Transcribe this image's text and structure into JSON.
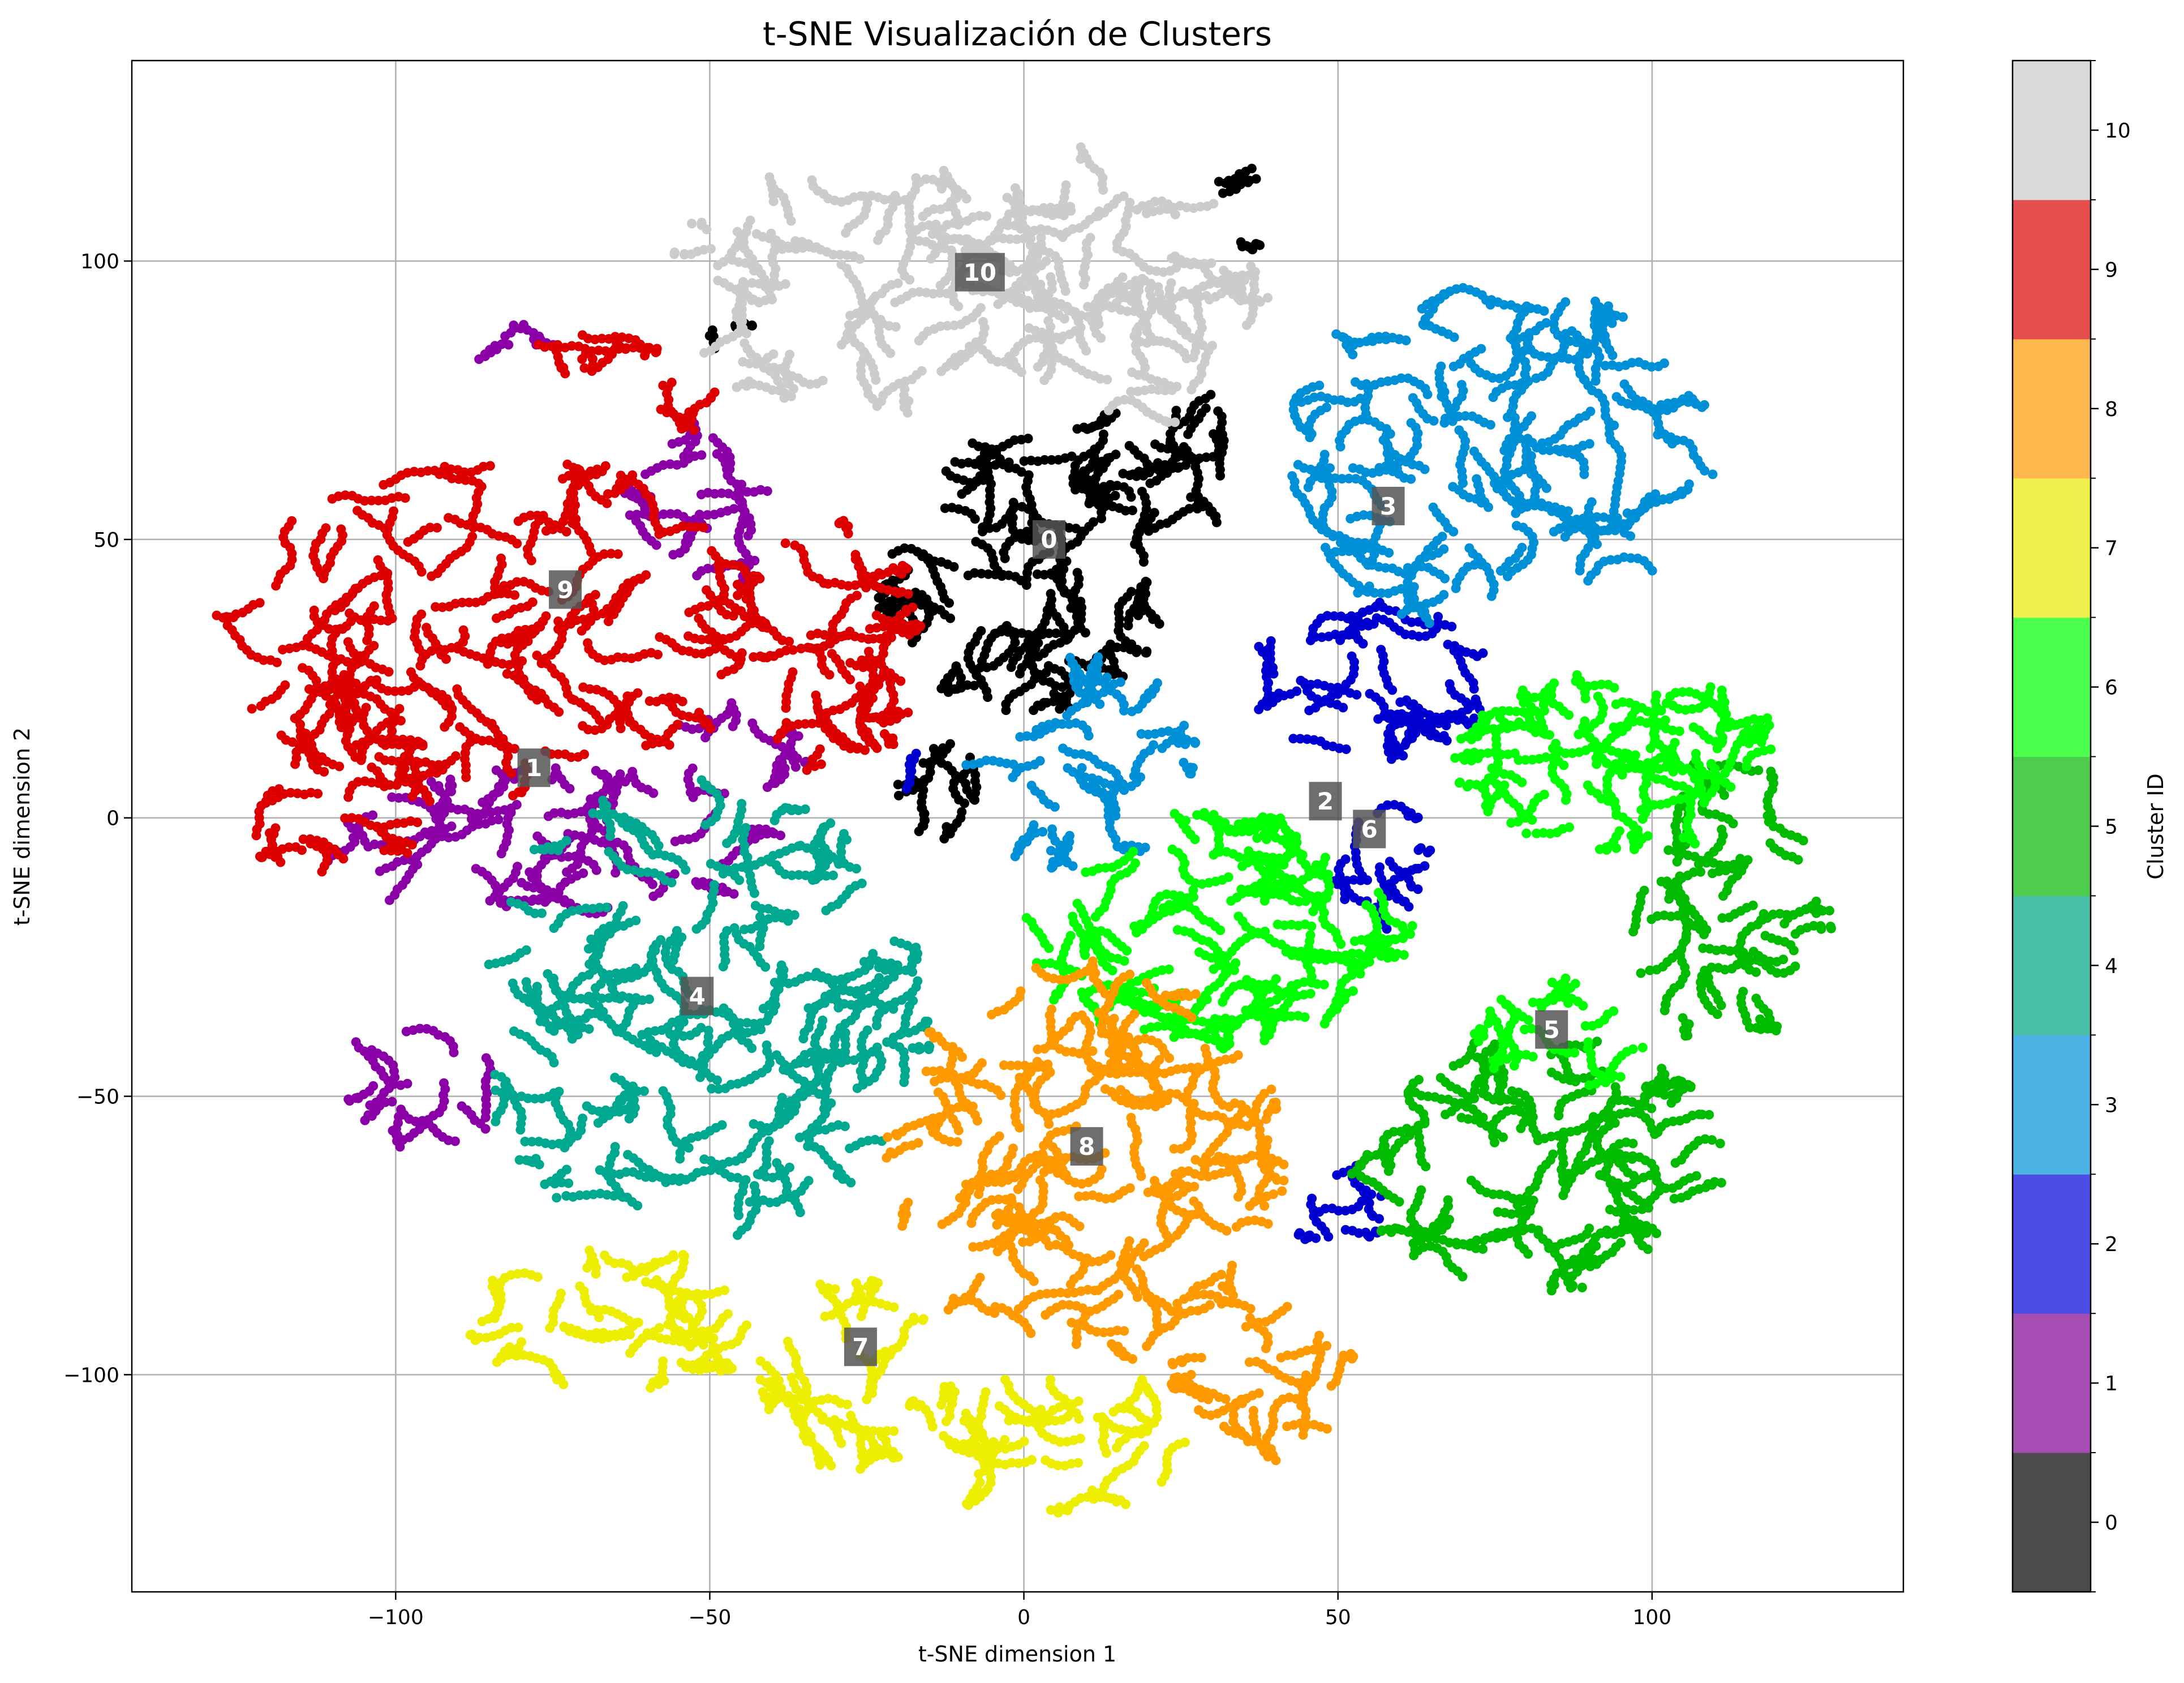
{
  "chart_data": {
    "type": "scatter",
    "title": "t-SNE Visualización de Clusters",
    "xlabel": "t-SNE dimension 1",
    "ylabel": "t-SNE dimension 2",
    "xlim": [
      -142,
      140
    ],
    "ylim": [
      -139,
      136
    ],
    "xticks": [
      -100,
      -50,
      0,
      50,
      100
    ],
    "yticks": [
      -100,
      -50,
      0,
      50,
      100
    ],
    "xtick_labels": [
      "−100",
      "−50",
      "0",
      "50",
      "100"
    ],
    "ytick_labels": [
      "−100",
      "−50",
      "0",
      "50",
      "100"
    ],
    "grid": true,
    "colorbar": {
      "label": "Cluster ID",
      "ticks": [
        "0",
        "1",
        "2",
        "3",
        "4",
        "5",
        "6",
        "7",
        "8",
        "9",
        "10"
      ],
      "colors": [
        "#4b4b4b",
        "#a64db3",
        "#4d4de6",
        "#4db3e6",
        "#47bfa8",
        "#4dcc4d",
        "#4dff4d",
        "#f0f04d",
        "#ffb84d",
        "#e64d4d",
        "#d9d9d9"
      ]
    },
    "clusters": [
      {
        "id": 0,
        "label": "0",
        "color": "#000000",
        "label_pos": [
          4,
          50
        ],
        "regions": [
          {
            "cx": 0,
            "cy": 45,
            "rx": 22,
            "ry": 25,
            "n": 520
          },
          {
            "cx": 22,
            "cy": 65,
            "rx": 13,
            "ry": 14,
            "n": 170
          },
          {
            "cx": -13,
            "cy": 5,
            "rx": 6,
            "ry": 8,
            "n": 70
          },
          {
            "cx": 34,
            "cy": 108,
            "rx": 3,
            "ry": 10,
            "n": 25
          },
          {
            "cx": -45,
            "cy": 86,
            "rx": 6,
            "ry": 2,
            "n": 15
          }
        ]
      },
      {
        "id": 1,
        "label": "1",
        "color": "#8a00a6",
        "label_pos": [
          -78,
          9
        ],
        "regions": [
          {
            "cx": -75,
            "cy": -5,
            "rx": 35,
            "ry": 13,
            "n": 340
          },
          {
            "cx": -50,
            "cy": 55,
            "rx": 13,
            "ry": 15,
            "n": 130
          },
          {
            "cx": -95,
            "cy": -45,
            "rx": 12,
            "ry": 14,
            "n": 90
          },
          {
            "cx": -82,
            "cy": 85,
            "rx": 6,
            "ry": 3,
            "n": 25
          },
          {
            "cx": -48,
            "cy": 12,
            "rx": 12,
            "ry": 8,
            "n": 60
          }
        ]
      },
      {
        "id": 2,
        "label": "2",
        "color": "#0000d0",
        "label_pos": [
          48,
          3
        ],
        "regions": [
          {
            "cx": 55,
            "cy": 25,
            "rx": 18,
            "ry": 14,
            "n": 250
          },
          {
            "cx": 56,
            "cy": -7,
            "rx": 7,
            "ry": 12,
            "n": 90
          },
          {
            "cx": 50,
            "cy": -70,
            "rx": 6,
            "ry": 8,
            "n": 55
          },
          {
            "cx": -17,
            "cy": 8,
            "rx": 2,
            "ry": 3,
            "n": 8
          }
        ]
      },
      {
        "id": 3,
        "label": "3",
        "color": "#0090d8",
        "label_pos": [
          58,
          56
        ],
        "regions": [
          {
            "cx": 75,
            "cy": 65,
            "rx": 33,
            "ry": 30,
            "n": 820
          },
          {
            "cx": 8,
            "cy": 10,
            "rx": 18,
            "ry": 18,
            "n": 230
          }
        ]
      },
      {
        "id": 4,
        "label": "4",
        "color": "#00a890",
        "label_pos": [
          -52,
          -32
        ],
        "regions": [
          {
            "cx": -52,
            "cy": -35,
            "rx": 35,
            "ry": 40,
            "n": 1050
          }
        ]
      },
      {
        "id": 5,
        "label": "5",
        "color": "#00bb00",
        "label_pos": [
          84,
          -38
        ],
        "regions": [
          {
            "cx": 82,
            "cy": -62,
            "rx": 28,
            "ry": 22,
            "n": 620
          },
          {
            "cx": 112,
            "cy": -15,
            "rx": 15,
            "ry": 25,
            "n": 320
          }
        ]
      },
      {
        "id": 6,
        "label": "6",
        "color": "#00ff00",
        "label_pos": [
          55,
          -2
        ],
        "regions": [
          {
            "cx": 30,
            "cy": -20,
            "rx": 30,
            "ry": 20,
            "n": 640
          },
          {
            "cx": 95,
            "cy": 10,
            "rx": 25,
            "ry": 15,
            "n": 460
          },
          {
            "cx": 85,
            "cy": -40,
            "rx": 12,
            "ry": 10,
            "n": 110
          }
        ]
      },
      {
        "id": 7,
        "label": "7",
        "color": "#eeee00",
        "label_pos": [
          -26,
          -95
        ],
        "regions": [
          {
            "cx": -65,
            "cy": -90,
            "rx": 22,
            "ry": 12,
            "n": 260
          },
          {
            "cx": -28,
            "cy": -100,
            "rx": 13,
            "ry": 16,
            "n": 200
          },
          {
            "cx": 5,
            "cy": -112,
            "rx": 25,
            "ry": 12,
            "n": 260
          }
        ]
      },
      {
        "id": 8,
        "label": "8",
        "color": "#ff9900",
        "label_pos": [
          10,
          -59
        ],
        "regions": [
          {
            "cx": 10,
            "cy": -62,
            "rx": 30,
            "ry": 35,
            "n": 920
          },
          {
            "cx": 38,
            "cy": -100,
            "rx": 13,
            "ry": 15,
            "n": 160
          }
        ]
      },
      {
        "id": 9,
        "label": "9",
        "color": "#dd0000",
        "label_pos": [
          -73,
          41
        ],
        "regions": [
          {
            "cx": -85,
            "cy": 35,
            "rx": 42,
            "ry": 30,
            "n": 880
          },
          {
            "cx": -110,
            "cy": 5,
            "rx": 15,
            "ry": 15,
            "n": 200
          },
          {
            "cx": -30,
            "cy": 30,
            "rx": 12,
            "ry": 22,
            "n": 280
          },
          {
            "cx": -70,
            "cy": 85,
            "rx": 10,
            "ry": 5,
            "n": 50
          },
          {
            "cx": -55,
            "cy": 74,
            "rx": 6,
            "ry": 4,
            "n": 25
          }
        ]
      },
      {
        "id": 10,
        "label": "10",
        "color": "#cccccc",
        "label_pos": [
          -7,
          98
        ],
        "regions": [
          {
            "cx": -25,
            "cy": 95,
            "rx": 30,
            "ry": 22,
            "n": 500
          },
          {
            "cx": 15,
            "cy": 95,
            "rx": 22,
            "ry": 25,
            "n": 480
          }
        ]
      }
    ]
  }
}
